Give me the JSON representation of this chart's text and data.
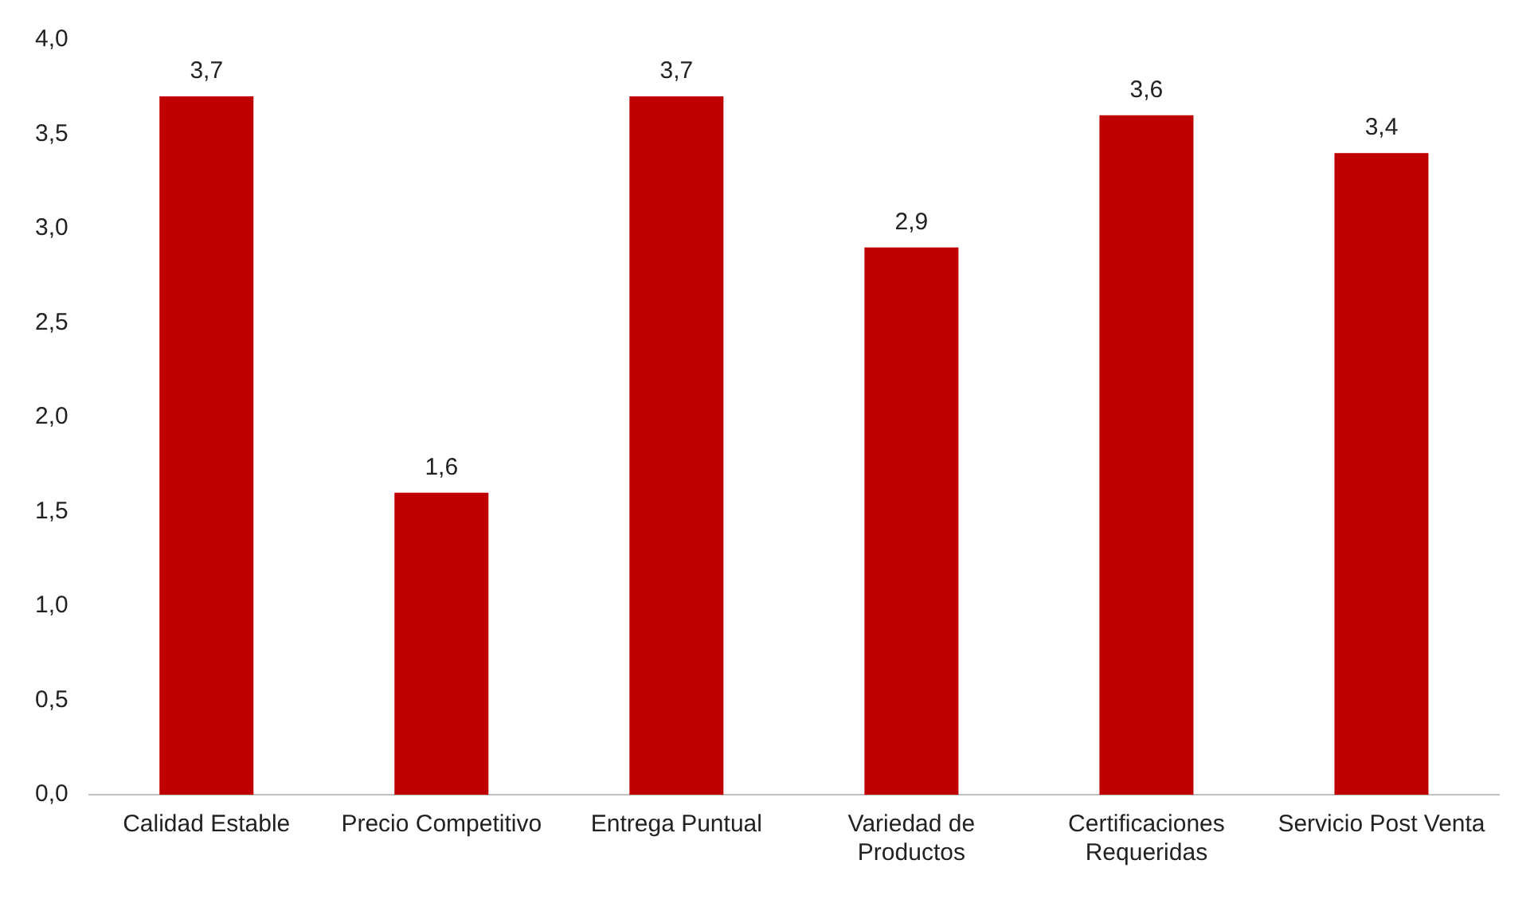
{
  "chart_data": {
    "type": "bar",
    "categories": [
      "Calidad Estable",
      "Precio Competitivo",
      "Entrega Puntual",
      "Variedad de Productos",
      "Certificaciones Requeridas",
      "Servicio Post Venta"
    ],
    "values": [
      3.7,
      1.6,
      3.7,
      2.9,
      3.6,
      3.4
    ],
    "value_labels": [
      "3,7",
      "1,6",
      "3,7",
      "2,9",
      "3,6",
      "3,4"
    ],
    "color": "#c00000",
    "ylim": [
      0,
      4
    ],
    "yticks": [
      {
        "value": 0,
        "label": "0,0"
      },
      {
        "value": 0.5,
        "label": "0,5"
      },
      {
        "value": 1,
        "label": "1,0"
      },
      {
        "value": 1.5,
        "label": "1,5"
      },
      {
        "value": 2,
        "label": "2,0"
      },
      {
        "value": 2.5,
        "label": "2,5"
      },
      {
        "value": 3,
        "label": "3,0"
      },
      {
        "value": 3.5,
        "label": "3,5"
      },
      {
        "value": 4,
        "label": "4,0"
      }
    ],
    "grid": false,
    "legend": false
  }
}
